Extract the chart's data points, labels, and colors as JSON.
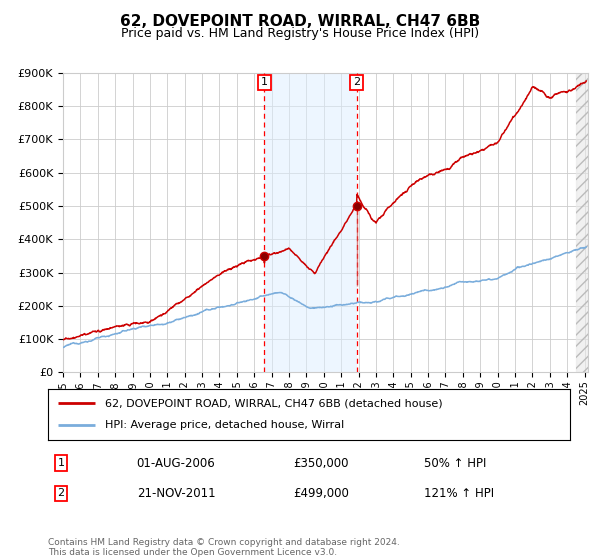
{
  "title": "62, DOVEPOINT ROAD, WIRRAL, CH47 6BB",
  "subtitle": "Price paid vs. HM Land Registry's House Price Index (HPI)",
  "ylim": [
    0,
    900000
  ],
  "yticks": [
    0,
    100000,
    200000,
    300000,
    400000,
    500000,
    600000,
    700000,
    800000,
    900000
  ],
  "ytick_labels": [
    "£0",
    "£100K",
    "£200K",
    "£300K",
    "£400K",
    "£500K",
    "£600K",
    "£700K",
    "£800K",
    "£900K"
  ],
  "date_start": 1995.0,
  "date_end": 2025.0,
  "hpi_color": "#7aaddc",
  "price_color": "#cc0000",
  "purchase1_date": 2006.583,
  "purchase1_price": 350000,
  "purchase2_date": 2011.896,
  "purchase2_price": 499000,
  "legend_label_red": "62, DOVEPOINT ROAD, WIRRAL, CH47 6BB (detached house)",
  "legend_label_blue": "HPI: Average price, detached house, Wirral",
  "annotation1_date": "01-AUG-2006",
  "annotation1_price": "£350,000",
  "annotation1_hpi": "50% ↑ HPI",
  "annotation2_date": "21-NOV-2011",
  "annotation2_price": "£499,000",
  "annotation2_hpi": "121% ↑ HPI",
  "footer": "Contains HM Land Registry data © Crown copyright and database right 2024.\nThis data is licensed under the Open Government Licence v3.0.",
  "background_color": "#ffffff",
  "grid_color": "#cccccc",
  "shade_color": "#ddeeff"
}
